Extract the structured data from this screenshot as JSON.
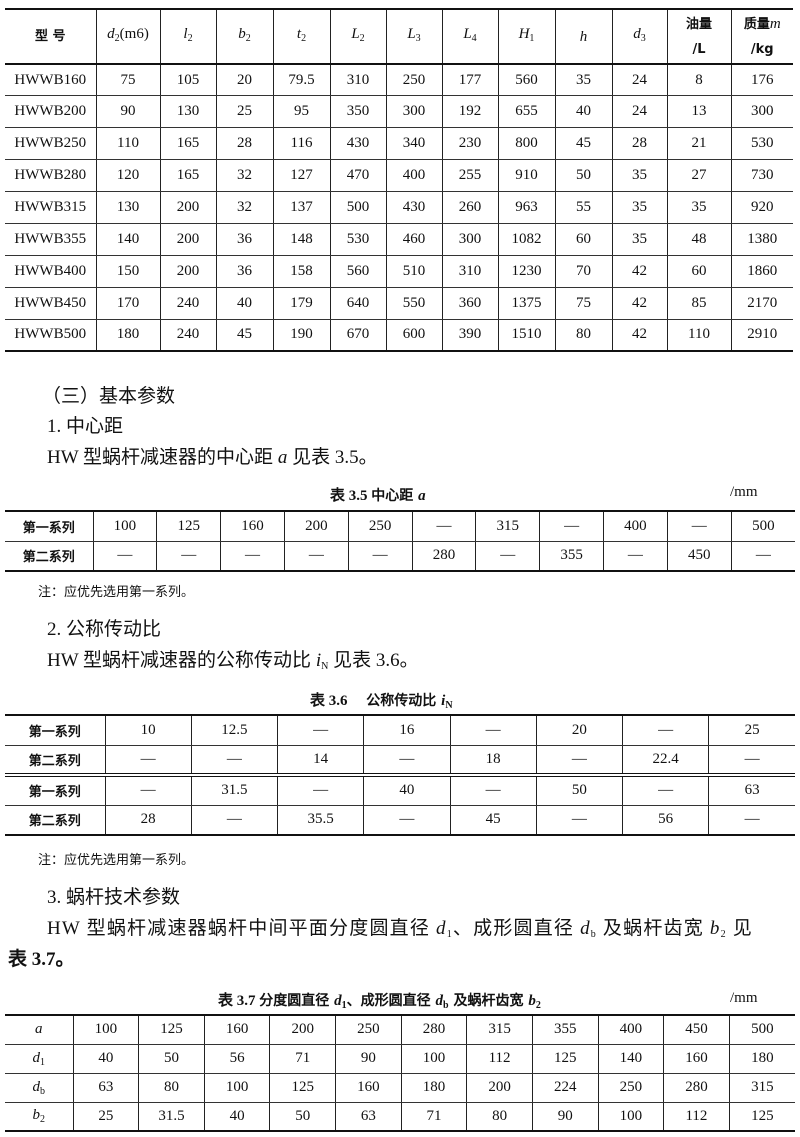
{
  "table_dims": {
    "headers": [
      {
        "cn": "型 号"
      },
      {
        "sym": "d",
        "sub": "2",
        "rest": "(m6)"
      },
      {
        "sym": "l",
        "sub": "2"
      },
      {
        "sym": "b",
        "sub": "2"
      },
      {
        "sym": "t",
        "sub": "2"
      },
      {
        "sym": "L",
        "sub": "2"
      },
      {
        "sym": "L",
        "sub": "3"
      },
      {
        "sym": "L",
        "sub": "4"
      },
      {
        "sym": "H",
        "sub": "1"
      },
      {
        "sym": "h"
      },
      {
        "sym": "d",
        "sub": "3"
      },
      {
        "cn": "油量",
        "line2": "/L"
      },
      {
        "cn": "质量",
        "sym": "m",
        "line2": "/kg"
      }
    ],
    "rows": [
      [
        "HWWB160",
        "75",
        "105",
        "20",
        "79.5",
        "310",
        "250",
        "177",
        "560",
        "35",
        "24",
        "8",
        "176"
      ],
      [
        "HWWB200",
        "90",
        "130",
        "25",
        "95",
        "350",
        "300",
        "192",
        "655",
        "40",
        "24",
        "13",
        "300"
      ],
      [
        "HWWB250",
        "110",
        "165",
        "28",
        "116",
        "430",
        "340",
        "230",
        "800",
        "45",
        "28",
        "21",
        "530"
      ],
      [
        "HWWB280",
        "120",
        "165",
        "32",
        "127",
        "470",
        "400",
        "255",
        "910",
        "50",
        "35",
        "27",
        "730"
      ],
      [
        "HWWB315",
        "130",
        "200",
        "32",
        "137",
        "500",
        "430",
        "260",
        "963",
        "55",
        "35",
        "35",
        "920"
      ],
      [
        "HWWB355",
        "140",
        "200",
        "36",
        "148",
        "530",
        "460",
        "300",
        "1082",
        "60",
        "35",
        "48",
        "1380"
      ],
      [
        "HWWB400",
        "150",
        "200",
        "36",
        "158",
        "560",
        "510",
        "310",
        "1230",
        "70",
        "42",
        "60",
        "1860"
      ],
      [
        "HWWB450",
        "170",
        "240",
        "40",
        "179",
        "640",
        "550",
        "360",
        "1375",
        "75",
        "42",
        "85",
        "2170"
      ],
      [
        "HWWB500",
        "180",
        "240",
        "45",
        "190",
        "670",
        "600",
        "390",
        "1510",
        "80",
        "42",
        "110",
        "2910"
      ]
    ]
  },
  "section3": {
    "heading": "（三）基本参数",
    "sub1": {
      "heading": "1. 中心距",
      "para": [
        {
          "t": "HW 型蜗杆减速器的中心距 "
        },
        {
          "t": "a",
          "i": true
        },
        {
          "t": " 见表 3.5。"
        }
      ]
    },
    "table35": {
      "caption": [
        {
          "t": "表 3.5 "
        },
        {
          "t": "中心距 ",
          "cn": true
        },
        {
          "t": "a",
          "i": true
        }
      ],
      "unit": "/mm",
      "rows": [
        [
          "第一系列",
          "100",
          "125",
          "160",
          "200",
          "250",
          "—",
          "315",
          "—",
          "400",
          "—",
          "500"
        ],
        [
          "第二系列",
          "—",
          "—",
          "—",
          "—",
          "—",
          "280",
          "—",
          "355",
          "—",
          "450",
          "—"
        ]
      ],
      "note": "注：应优先选用第一系列。"
    },
    "sub2": {
      "heading": "2. 公称传动比",
      "para": [
        {
          "t": "HW 型蜗杆减速器的公称传动比 "
        },
        {
          "t": "i",
          "i": true,
          "sub": "N"
        },
        {
          "t": " 见表 3.6。"
        }
      ]
    },
    "table36": {
      "caption": [
        {
          "t": "表 3.6　 "
        },
        {
          "t": "公称传动比 ",
          "cn": true
        },
        {
          "t": "i",
          "i": true,
          "sub": "N"
        }
      ],
      "rows": [
        [
          "第一系列",
          "10",
          "12.5",
          "—",
          "16",
          "—",
          "20",
          "—",
          "25"
        ],
        [
          "第二系列",
          "—",
          "—",
          "14",
          "—",
          "18",
          "—",
          "22.4",
          "—"
        ],
        [
          "第一系列",
          "—",
          "31.5",
          "—",
          "40",
          "—",
          "50",
          "—",
          "63"
        ],
        [
          "第二系列",
          "28",
          "—",
          "35.5",
          "—",
          "45",
          "—",
          "56",
          "—"
        ]
      ],
      "note": "注：应优先选用第一系列。"
    },
    "sub3": {
      "heading": "3. 蜗杆技术参数",
      "para1": [
        {
          "t": "HW 型蜗杆减速器蜗杆中间平面分度圆直径 "
        },
        {
          "t": "d",
          "i": true,
          "sub": "1"
        },
        {
          "t": "、成形圆直径 "
        },
        {
          "t": "d",
          "i": true,
          "sub": "b"
        },
        {
          "t": " 及蜗杆齿宽 "
        },
        {
          "t": "b",
          "i": true,
          "sub": "2"
        },
        {
          "t": " 见"
        }
      ],
      "para2": [
        {
          "t": "表 3.7。"
        }
      ]
    },
    "table37": {
      "caption": [
        {
          "t": "表 3.7 "
        },
        {
          "t": "分度圆直径 ",
          "cn": true
        },
        {
          "t": "d",
          "i": true,
          "sub": "1"
        },
        {
          "t": "、成形圆直径 ",
          "cn": true
        },
        {
          "t": "d",
          "i": true,
          "sub": "b"
        },
        {
          "t": " 及蜗杆齿宽 ",
          "cn": true
        },
        {
          "t": "b",
          "i": true,
          "sub": "2"
        }
      ],
      "unit": "/mm",
      "row_labels": [
        {
          "sym": "a"
        },
        {
          "sym": "d",
          "sub": "1"
        },
        {
          "sym": "d",
          "sub": "b"
        },
        {
          "sym": "b",
          "sub": "2"
        }
      ],
      "rows": [
        [
          "100",
          "125",
          "160",
          "200",
          "250",
          "280",
          "315",
          "355",
          "400",
          "450",
          "500"
        ],
        [
          "40",
          "50",
          "56",
          "71",
          "90",
          "100",
          "112",
          "125",
          "140",
          "160",
          "180"
        ],
        [
          "63",
          "80",
          "100",
          "125",
          "160",
          "180",
          "200",
          "224",
          "250",
          "280",
          "315"
        ],
        [
          "25",
          "31.5",
          "40",
          "50",
          "63",
          "71",
          "80",
          "90",
          "100",
          "112",
          "125"
        ]
      ]
    }
  }
}
